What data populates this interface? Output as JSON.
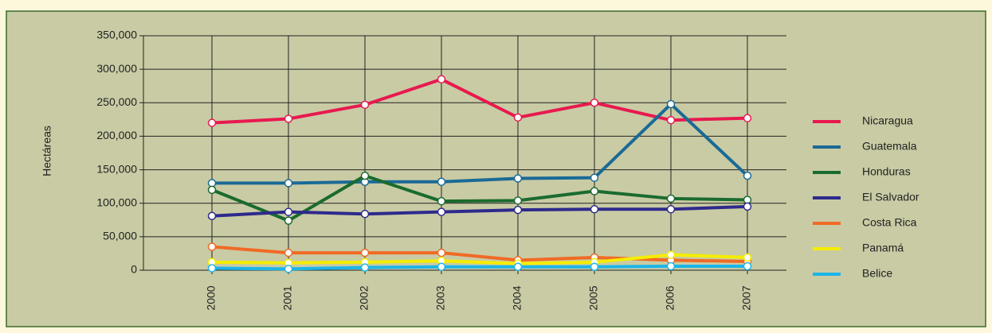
{
  "chart_data": {
    "type": "line",
    "y_label": "Hectáreas",
    "categories": [
      "2000",
      "2001",
      "2002",
      "2003",
      "2004",
      "2005",
      "2006",
      "2007"
    ],
    "series": [
      {
        "name": "Nicaragua",
        "color": "#e8194f",
        "values": [
          220000,
          226000,
          247000,
          285000,
          228000,
          250000,
          224000,
          227000
        ]
      },
      {
        "name": "Guatemala",
        "color": "#1a6a96",
        "values": [
          130000,
          130000,
          132000,
          132000,
          137000,
          138000,
          248000,
          141000
        ]
      },
      {
        "name": "Honduras",
        "color": "#1a6b2e",
        "values": [
          120000,
          74000,
          141000,
          103000,
          104000,
          118000,
          107000,
          105000
        ]
      },
      {
        "name": "El Salvador",
        "color": "#2e2a8c",
        "values": [
          81000,
          87000,
          84000,
          87000,
          90000,
          91000,
          91000,
          95000
        ]
      },
      {
        "name": "Costa Rica",
        "color": "#f06a25",
        "values": [
          35000,
          26000,
          26000,
          26000,
          15000,
          19000,
          15000,
          13000
        ]
      },
      {
        "name": "Panamá",
        "color": "#f5ed00",
        "values": [
          12000,
          11000,
          12000,
          14000,
          10000,
          12000,
          23000,
          19000
        ]
      },
      {
        "name": "Belice",
        "color": "#1cb5e8",
        "values": [
          3000,
          2000,
          4000,
          5000,
          5000,
          5000,
          6000,
          6000
        ]
      }
    ],
    "ylim": [
      0,
      350000
    ],
    "yticks": [
      0,
      {
        "value": 50000,
        "label": "50,000"
      },
      {
        "value": 100000,
        "label": "100,000"
      },
      {
        "value": 150000,
        "label": "150,000"
      },
      {
        "value": 200000,
        "label": "200,000"
      },
      {
        "value": 250000,
        "label": "250,000"
      },
      {
        "value": 300000,
        "label": "300,000"
      },
      {
        "value": 350000,
        "label": "350,000"
      }
    ],
    "grid": true,
    "legend": "right"
  }
}
